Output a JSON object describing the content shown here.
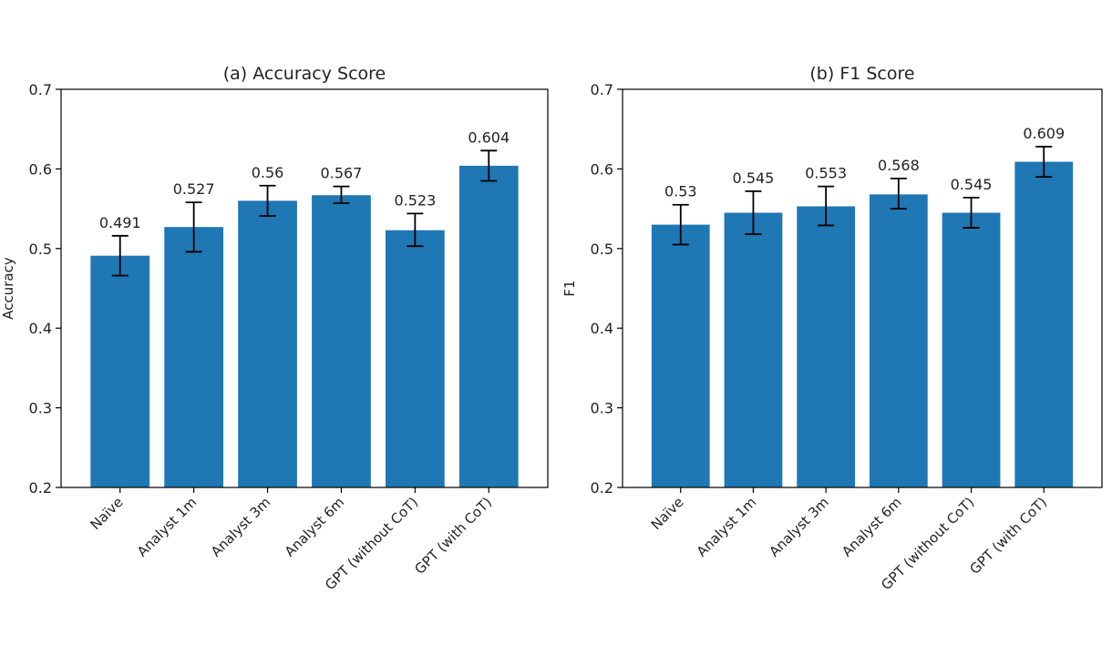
{
  "chart_data": [
    {
      "type": "bar",
      "title": "(a) Accuracy Score",
      "xlabel": "",
      "ylabel": "Accuracy",
      "ylim": [
        0.2,
        0.7
      ],
      "yticks": [
        "0.2",
        "0.3",
        "0.4",
        "0.5",
        "0.6",
        "0.7"
      ],
      "categories": [
        "Naïve",
        "Analyst 1m",
        "Analyst 3m",
        "Analyst 6m",
        "GPT (without CoT)",
        "GPT (with CoT)"
      ],
      "values": [
        0.491,
        0.527,
        0.56,
        0.567,
        0.523,
        0.604
      ],
      "value_labels": [
        "0.491",
        "0.527",
        "0.56",
        "0.567",
        "0.523",
        "0.604"
      ],
      "error_low": [
        0.466,
        0.496,
        0.541,
        0.557,
        0.503,
        0.585
      ],
      "error_high": [
        0.516,
        0.558,
        0.579,
        0.578,
        0.544,
        0.623
      ],
      "bar_color": "#1f77b4",
      "grid": false
    },
    {
      "type": "bar",
      "title": "(b) F1 Score",
      "xlabel": "",
      "ylabel": "F1",
      "ylim": [
        0.2,
        0.7
      ],
      "yticks": [
        "0.2",
        "0.3",
        "0.4",
        "0.5",
        "0.6",
        "0.7"
      ],
      "categories": [
        "Naïve",
        "Analyst 1m",
        "Analyst 3m",
        "Analyst 6m",
        "GPT (without CoT)",
        "GPT (with CoT)"
      ],
      "values": [
        0.53,
        0.545,
        0.553,
        0.568,
        0.545,
        0.609
      ],
      "value_labels": [
        "0.53",
        "0.545",
        "0.553",
        "0.568",
        "0.545",
        "0.609"
      ],
      "error_low": [
        0.505,
        0.518,
        0.529,
        0.55,
        0.526,
        0.59
      ],
      "error_high": [
        0.555,
        0.572,
        0.578,
        0.588,
        0.564,
        0.628
      ],
      "bar_color": "#1f77b4",
      "grid": false
    }
  ]
}
